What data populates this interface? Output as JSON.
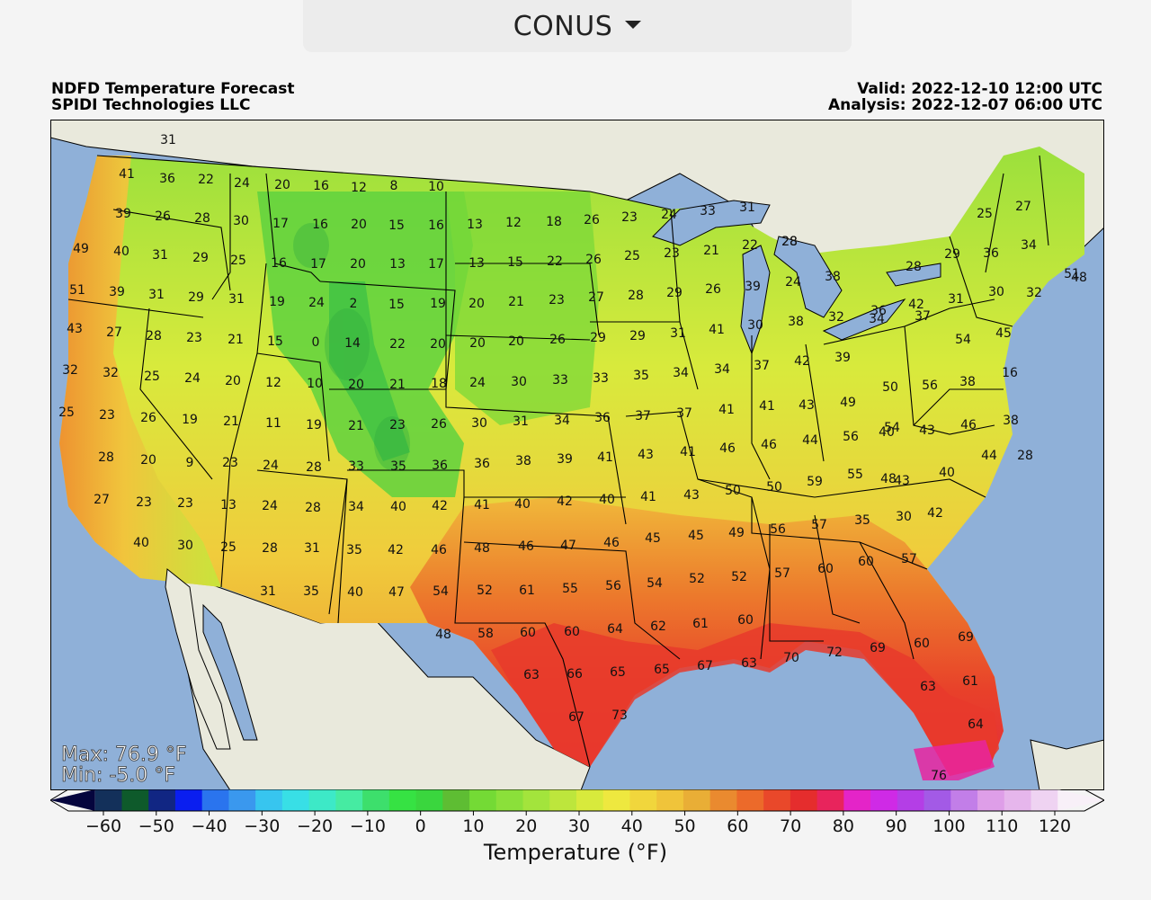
{
  "region_selector": {
    "label": "CONUS",
    "icon": "caret-down-icon"
  },
  "header": {
    "title": "NDFD Temperature Forecast",
    "organization": "SPIDI Technologies LLC",
    "valid": "Valid: 2022-12-10 12:00 UTC",
    "analysis": "Analysis: 2022-12-07 06:00 UTC"
  },
  "stats": {
    "max": "Max: 76.9 °F",
    "min": "Min: -5.0 °F"
  },
  "colorbar": {
    "label": "Temperature (°F)",
    "ticks": [
      "−60",
      "−50",
      "−40",
      "−30",
      "−20",
      "−10",
      "0",
      "10",
      "20",
      "30",
      "40",
      "50",
      "60",
      "70",
      "80",
      "90",
      "100",
      "110",
      "120"
    ],
    "colors": [
      "#05053d",
      "#13305a",
      "#0e5a2b",
      "#112683",
      "#0a1ef0",
      "#2a74ee",
      "#3a98ee",
      "#37c5ef",
      "#38dfe6",
      "#3de9c7",
      "#46eba2",
      "#3ddf6c",
      "#36e243",
      "#3ad63e",
      "#5ebd33",
      "#74da35",
      "#8be03a",
      "#a3e43c",
      "#bde63c",
      "#d8ea3c",
      "#eee83f",
      "#f1d63c",
      "#f0c43a",
      "#e9ae36",
      "#ea8a2f",
      "#ec6a2a",
      "#e9482a",
      "#e52d2d",
      "#e8245c",
      "#e424c8",
      "#cf2ae6",
      "#b43ee6",
      "#a35ae6",
      "#c27ee8",
      "#de9ee8",
      "#e6b6ec",
      "#efd3f2",
      "#f8f0f8"
    ],
    "color_semantics": "Temperature scale from -60 °F (navy) to 120 °F (white)"
  },
  "station_values": [
    "31",
    "41",
    "36",
    "22",
    "24",
    "20",
    "16",
    "12",
    "8",
    "10",
    "39",
    "26",
    "28",
    "30",
    "17",
    "16",
    "20",
    "15",
    "16",
    "13",
    "12",
    "18",
    "26",
    "23",
    "24",
    "33",
    "31",
    "28",
    "25",
    "27",
    "49",
    "40",
    "31",
    "29",
    "25",
    "16",
    "17",
    "20",
    "13",
    "17",
    "13",
    "15",
    "22",
    "26",
    "25",
    "23",
    "21",
    "22",
    "28",
    "34",
    "29",
    "36",
    "28",
    "48",
    "51",
    "39",
    "31",
    "29",
    "31",
    "19",
    "24",
    "2",
    "15",
    "19",
    "20",
    "21",
    "23",
    "27",
    "28",
    "29",
    "26",
    "39",
    "24",
    "38",
    "36",
    "42",
    "31",
    "30",
    "32",
    "51",
    "43",
    "27",
    "28",
    "23",
    "21",
    "15",
    "0",
    "14",
    "22",
    "20",
    "20",
    "20",
    "26",
    "29",
    "29",
    "31",
    "41",
    "30",
    "38",
    "32",
    "34",
    "37",
    "54",
    "45",
    "32",
    "32",
    "25",
    "24",
    "20",
    "12",
    "10",
    "20",
    "21",
    "18",
    "24",
    "30",
    "33",
    "33",
    "35",
    "34",
    "34",
    "37",
    "42",
    "39",
    "50",
    "56",
    "38",
    "16",
    "25",
    "23",
    "26",
    "19",
    "21",
    "11",
    "19",
    "21",
    "23",
    "26",
    "30",
    "31",
    "34",
    "36",
    "37",
    "37",
    "41",
    "41",
    "43",
    "49",
    "40",
    "43",
    "46",
    "38",
    "28",
    "28",
    "20",
    "9",
    "23",
    "24",
    "28",
    "33",
    "35",
    "36",
    "36",
    "38",
    "39",
    "41",
    "43",
    "41",
    "46",
    "46",
    "44",
    "56",
    "54",
    "43",
    "40",
    "44",
    "27",
    "23",
    "23",
    "13",
    "24",
    "28",
    "34",
    "40",
    "42",
    "41",
    "40",
    "42",
    "40",
    "41",
    "43",
    "50",
    "50",
    "59",
    "55",
    "48",
    "42",
    "40",
    "30",
    "25",
    "28",
    "31",
    "35",
    "42",
    "46",
    "48",
    "46",
    "47",
    "46",
    "45",
    "45",
    "49",
    "56",
    "57",
    "35",
    "30",
    "31",
    "35",
    "40",
    "47",
    "54",
    "52",
    "61",
    "55",
    "56",
    "54",
    "52",
    "52",
    "57",
    "60",
    "60",
    "57",
    "48",
    "58",
    "60",
    "60",
    "64",
    "62",
    "61",
    "60",
    "70",
    "72",
    "69",
    "60",
    "69",
    "63",
    "66",
    "65",
    "65",
    "67",
    "63",
    "63",
    "61",
    "67",
    "73",
    "64",
    "76"
  ]
}
